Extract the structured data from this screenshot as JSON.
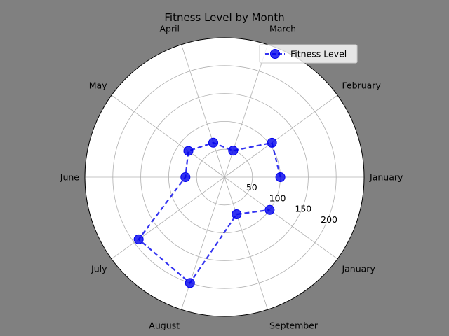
{
  "chart_data": {
    "type": "polar-line",
    "title": "Fitness Level by Month",
    "theta_labels": [
      "January",
      "February",
      "March",
      "April",
      "May",
      "June",
      "July",
      "August",
      "September",
      "January"
    ],
    "r_ticks": [
      50,
      100,
      150,
      200
    ],
    "r_max": 250,
    "grid": true,
    "legend_position": "top-right",
    "series": [
      {
        "name": "Fitness Level",
        "color": "#0000ee",
        "line_style": "dashed",
        "marker": "circle",
        "points": [
          {
            "label": "January",
            "value": 100
          },
          {
            "label": "February",
            "value": 105
          },
          {
            "label": "March",
            "value": 50
          },
          {
            "label": "April",
            "value": 65
          },
          {
            "label": "May",
            "value": 80
          },
          {
            "label": "June",
            "value": 70
          },
          {
            "label": "July",
            "value": 190
          },
          {
            "label": "August",
            "value": 200
          },
          {
            "label": "September",
            "value": 70
          },
          {
            "label": "January",
            "value": 100
          }
        ]
      }
    ]
  }
}
